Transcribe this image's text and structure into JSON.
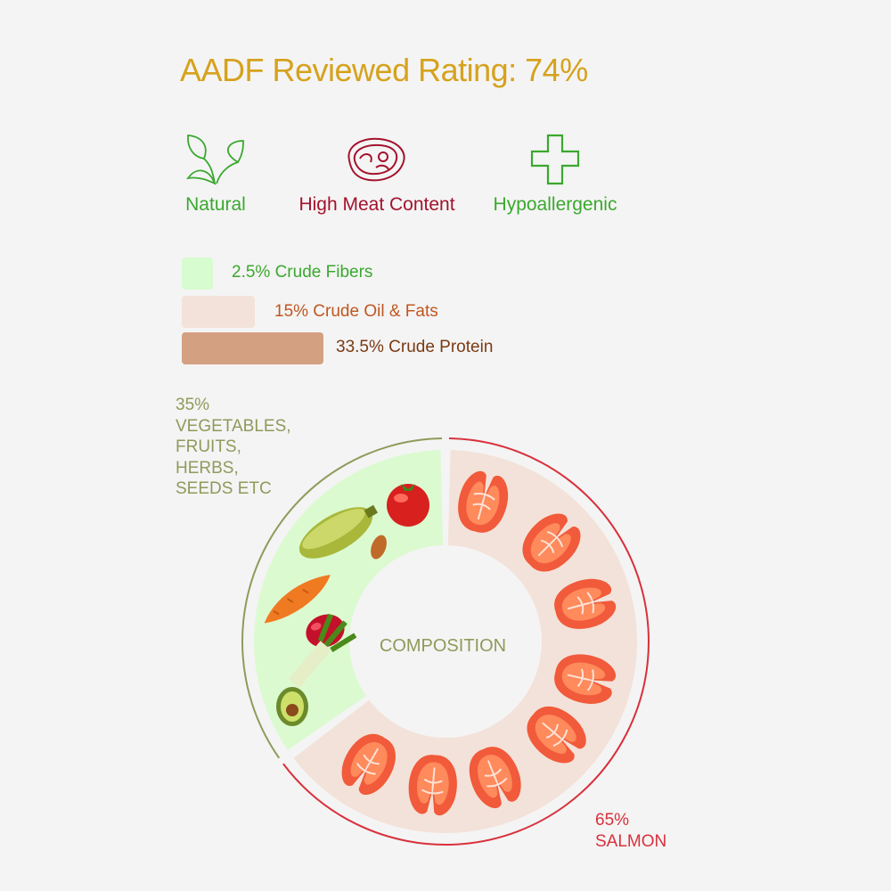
{
  "title": "AADF Reviewed Rating: 74%",
  "features": [
    {
      "label": "Natural",
      "icon": "leaves-icon",
      "color": "#3aa82e"
    },
    {
      "label": "High Meat Content",
      "icon": "steak-icon",
      "color": "#a3122c"
    },
    {
      "label": "Hypoallergenic",
      "icon": "plus-cross-icon",
      "color": "#3aa82e"
    }
  ],
  "nutrients": [
    {
      "label": "2.5% Crude Fibers",
      "value": 2.5,
      "color": "#d6fcd0",
      "text_color": "#3aa82e"
    },
    {
      "label": "15% Crude Oil & Fats",
      "value": 15,
      "color": "#f3e2d9",
      "text_color": "#c0571f"
    },
    {
      "label": "33.5% Crude Protein",
      "value": 33.5,
      "color": "#d4a082",
      "text_color": "#7a3a12"
    }
  ],
  "chart_data": {
    "type": "pie",
    "center_label": "COMPOSITION",
    "slices": [
      {
        "percent_label": "35%",
        "name_lines": [
          "VEGETABLES,",
          "FRUITS,",
          "HERBS,",
          "SEEDS ETC"
        ],
        "value": 35,
        "fill": "#dcfad0",
        "ring": "#8f9a5b",
        "text_color": "#8f9a5b"
      },
      {
        "percent_label": "65%",
        "name_lines": [
          "SALMON"
        ],
        "value": 65,
        "fill": "#f3e2d9",
        "ring": "#d8313c",
        "text_color": "#d8313c"
      }
    ]
  },
  "colors": {
    "background": "#f4f4f4",
    "title": "#d6a21d",
    "center_label": "#8f9a5b"
  }
}
